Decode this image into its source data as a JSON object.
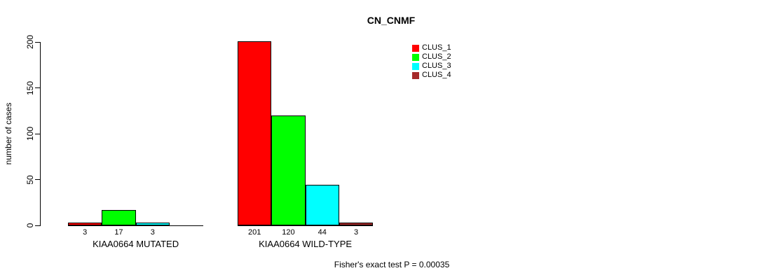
{
  "title": "CN_CNMF",
  "y_axis": {
    "label": "number of cases"
  },
  "footer": "Fisher's exact test P = 0.00035",
  "legend": {
    "items": [
      {
        "label": "CLUS_1",
        "color": "#ff0000"
      },
      {
        "label": "CLUS_2",
        "color": "#00ff00"
      },
      {
        "label": "CLUS_3",
        "color": "#00ffff"
      },
      {
        "label": "CLUS_4",
        "color": "#a52a2a"
      }
    ]
  },
  "chart_data": {
    "type": "bar",
    "title": "CN_CNMF",
    "xlabel": "",
    "ylabel": "number of cases",
    "ylim": [
      0,
      200
    ],
    "yticks": [
      0,
      50,
      100,
      150,
      200
    ],
    "grid": false,
    "legend_position": "top-right",
    "categories": [
      "KIAA0664 MUTATED",
      "KIAA0664 WILD-TYPE"
    ],
    "series": [
      {
        "name": "CLUS_1",
        "color": "#ff0000",
        "values": [
          3,
          201
        ]
      },
      {
        "name": "CLUS_2",
        "color": "#00ff00",
        "values": [
          17,
          120
        ]
      },
      {
        "name": "CLUS_3",
        "color": "#00ffff",
        "values": [
          3,
          44
        ]
      },
      {
        "name": "CLUS_4",
        "color": "#a52a2a",
        "values": [
          0,
          3
        ]
      }
    ],
    "bar_value_labels": [
      [
        "3",
        "17",
        "3",
        ""
      ],
      [
        "201",
        "120",
        "44",
        "3"
      ]
    ],
    "annotation": "Fisher's exact test P = 0.00035"
  }
}
